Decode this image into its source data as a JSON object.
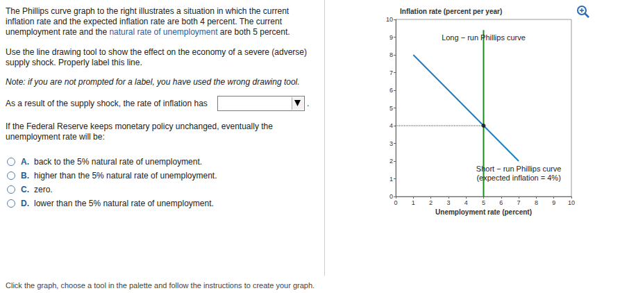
{
  "page": {
    "intro": [
      "The Phillips curve graph to the right illustrates a situation in which the current",
      "inflation rate and the expected inflation rate are both 4 percent. The current",
      [
        "unemployment rate and the ",
        "natural rate of unemployment",
        " are both 5 percent."
      ]
    ],
    "instruction": [
      "Use the line drawing tool to show the effect on the economy of a severe (adverse)",
      "supply shock. Properly label this line."
    ],
    "note": "Note: if you are not prompted for a label, you have used the wrong drawing tool.",
    "dropdown_prompt": "As a result of the supply shock, the rate of inflation has",
    "dropdown_end": ".",
    "question": [
      "If the Federal Reserve keeps monetary policy unchanged, eventually the",
      "unemployment rate will be:"
    ],
    "options": [
      {
        "letter": "A.",
        "text": "back to the 5% natural rate of unemployment."
      },
      {
        "letter": "B.",
        "text": "higher than the 5% natural rate of unemployment."
      },
      {
        "letter": "C.",
        "text": "zero."
      },
      {
        "letter": "D.",
        "text": "lower than the 5% natural rate of unemployment."
      }
    ],
    "footer": "Click the graph, choose a tool in the palette and follow the instructions to create your graph."
  },
  "chart_data": {
    "type": "line",
    "ylabel": "Inflation rate (percent per year)",
    "xlabel": "Unemployment rate (percent)",
    "xlim": [
      0,
      10
    ],
    "ylim": [
      0,
      10
    ],
    "xticks": [
      0,
      1,
      2,
      3,
      4,
      5,
      6,
      7,
      8,
      9,
      10
    ],
    "yticks": [
      0,
      1,
      2,
      3,
      4,
      5,
      6,
      7,
      8,
      9,
      10
    ],
    "grid": false,
    "series": [
      {
        "name": "Long − run Phillips curve",
        "color": "#1a8c1a",
        "line_style": "solid",
        "x": [
          5,
          5
        ],
        "values": [
          0,
          9.4
        ]
      },
      {
        "name": "Short − run Phillips curve",
        "note": "(expected inflation = 4%)",
        "color": "#1f7ec2",
        "line_style": "solid",
        "x": [
          1,
          7
        ],
        "values": [
          8,
          2
        ]
      },
      {
        "color": "#3a3a3a",
        "line_style": "dotted",
        "x": [
          0,
          5
        ],
        "values": [
          4,
          4
        ]
      },
      {
        "type": "scatter",
        "color": "#111111",
        "marker": "circle",
        "x": [
          5
        ],
        "values": [
          4
        ]
      }
    ]
  }
}
